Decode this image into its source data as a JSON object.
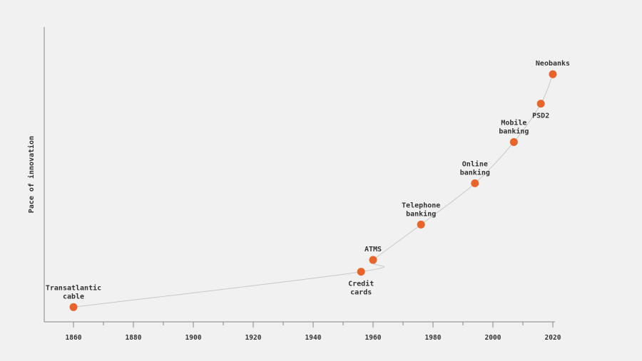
{
  "chart_data": {
    "type": "scatter",
    "title": "",
    "xlabel": "",
    "ylabel": "Pace of innovation",
    "xlim": [
      1850,
      2025
    ],
    "ylim": [
      0,
      100
    ],
    "x_ticks": [
      1860,
      1880,
      1900,
      1920,
      1940,
      1960,
      1980,
      2000,
      2020
    ],
    "grid": false,
    "points": [
      {
        "label": "Transatlantic cable",
        "x": 1860,
        "y": 5
      },
      {
        "label": "Credit cards",
        "x": 1956,
        "y": 17
      },
      {
        "label": "ATMS",
        "x": 1960,
        "y": 21
      },
      {
        "label": "Telephone banking",
        "x": 1976,
        "y": 33
      },
      {
        "label": "Online banking",
        "x": 1994,
        "y": 47
      },
      {
        "label": "Mobile banking",
        "x": 2007,
        "y": 61
      },
      {
        "label": "PSD2",
        "x": 2016,
        "y": 74
      },
      {
        "label": "Neobanks",
        "x": 2020,
        "y": 84
      }
    ],
    "colors": {
      "background": "#f1f1f1",
      "marker": "#e8642a",
      "curve": "#c8c8c8",
      "axis": "#888888",
      "text": "#333333"
    }
  }
}
